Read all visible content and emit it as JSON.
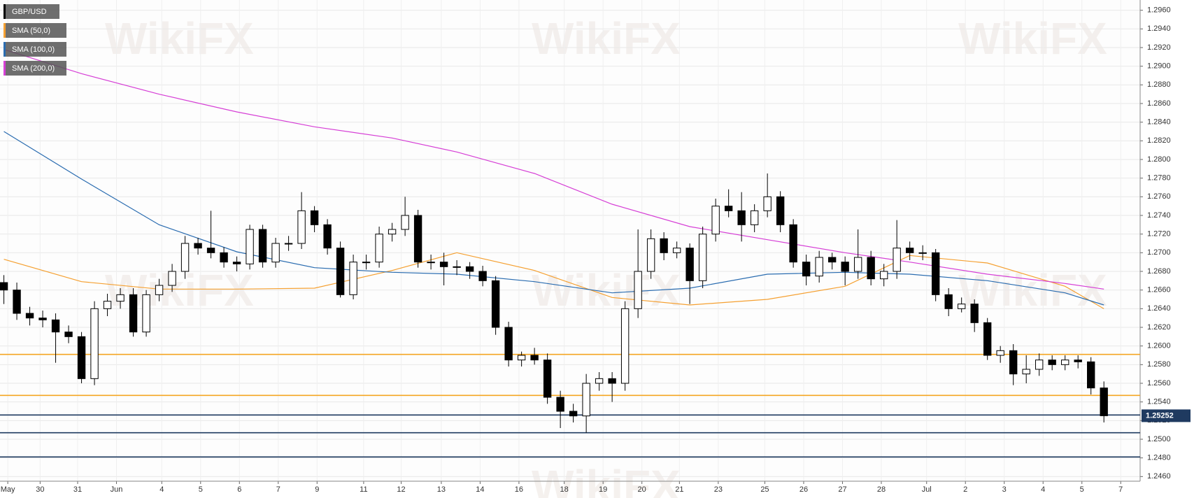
{
  "chart_data": {
    "type": "candlestick",
    "name": "GBP/USD",
    "watermark": "WikiFX",
    "color_up": "#ffffff",
    "color_down": "#000000",
    "open": [
      1.2668,
      1.266,
      1.2635,
      1.263,
      1.2628,
      1.2615,
      1.261,
      1.2565,
      1.264,
      1.2648,
      1.2655,
      1.2615,
      1.2655,
      1.2665,
      1.268,
      1.271,
      1.2705,
      1.27,
      1.269,
      1.2688,
      1.2725,
      1.269,
      1.271,
      1.271,
      1.2745,
      1.273,
      1.2705,
      1.2655,
      1.269,
      1.269,
      1.272,
      1.2725,
      1.274,
      1.269,
      1.269,
      1.2685,
      1.2685,
      1.268,
      1.267,
      1.262,
      1.2585,
      1.259,
      1.2585,
      1.2545,
      1.253,
      1.2525,
      1.256,
      1.2565,
      1.256,
      1.264,
      1.268,
      1.2715,
      1.27,
      1.2705,
      1.267,
      1.272,
      1.275,
      1.2745,
      1.273,
      1.2745,
      1.276,
      1.273,
      1.269,
      1.2675,
      1.2695,
      1.269,
      1.268,
      1.2695,
      1.2672,
      1.268,
      1.2705,
      1.27,
      1.27,
      1.2655,
      1.264,
      1.2645,
      1.2625,
      1.259,
      1.2595,
      1.257,
      1.2575,
      1.2585,
      1.258,
      1.2585,
      1.2583,
      1.2555
    ],
    "high": [
      1.2676,
      1.2668,
      1.2642,
      1.2638,
      1.2635,
      1.2622,
      1.2615,
      1.2648,
      1.2656,
      1.2662,
      1.2662,
      1.266,
      1.2672,
      1.2688,
      1.2718,
      1.2716,
      1.2745,
      1.2706,
      1.2696,
      1.273,
      1.273,
      1.2716,
      1.2718,
      1.2765,
      1.275,
      1.2736,
      1.2712,
      1.2698,
      1.2698,
      1.2728,
      1.2732,
      1.276,
      1.2746,
      1.2698,
      1.27,
      1.2692,
      1.269,
      1.2686,
      1.2675,
      1.2626,
      1.2594,
      1.2598,
      1.2592,
      1.2552,
      1.2538,
      1.257,
      1.2572,
      1.2572,
      1.2648,
      1.2725,
      1.2725,
      1.2722,
      1.2712,
      1.271,
      1.2728,
      1.2758,
      1.2768,
      1.2765,
      1.2752,
      1.2785,
      1.2766,
      1.2736,
      1.2698,
      1.2702,
      1.27,
      1.2696,
      1.2725,
      1.2702,
      1.2688,
      1.2735,
      1.2712,
      1.2708,
      1.2704,
      1.2662,
      1.2652,
      1.265,
      1.263,
      1.26,
      1.2602,
      1.259,
      1.2592,
      1.259,
      1.259,
      1.259,
      1.2588,
      1.2562
    ],
    "low": [
      1.2645,
      1.2628,
      1.2622,
      1.262,
      1.2582,
      1.2603,
      1.256,
      1.2558,
      1.2632,
      1.264,
      1.261,
      1.261,
      1.2648,
      1.2658,
      1.2672,
      1.2698,
      1.2694,
      1.2684,
      1.268,
      1.2682,
      1.2684,
      1.2684,
      1.2702,
      1.2704,
      1.2722,
      1.2698,
      1.2652,
      1.265,
      1.2682,
      1.2684,
      1.2712,
      1.2718,
      1.2684,
      1.2682,
      1.2665,
      1.2676,
      1.2672,
      1.2664,
      1.2612,
      1.2578,
      1.2578,
      1.258,
      1.2538,
      1.2512,
      1.2518,
      1.2507,
      1.2552,
      1.254,
      1.2552,
      1.263,
      1.2672,
      1.2692,
      1.2694,
      1.2645,
      1.2662,
      1.2712,
      1.2738,
      1.2712,
      1.2722,
      1.2738,
      1.2722,
      1.2684,
      1.2665,
      1.2668,
      1.2682,
      1.2665,
      1.2672,
      1.2665,
      1.2664,
      1.2672,
      1.2692,
      1.2692,
      1.2648,
      1.2632,
      1.2636,
      1.2615,
      1.2585,
      1.2582,
      1.2558,
      1.256,
      1.2568,
      1.2574,
      1.2574,
      1.2576,
      1.2548,
      1.2518
    ],
    "close": [
      1.266,
      1.2635,
      1.263,
      1.2628,
      1.2615,
      1.261,
      1.2565,
      1.264,
      1.2648,
      1.2655,
      1.2615,
      1.2655,
      1.2665,
      1.268,
      1.271,
      1.2705,
      1.27,
      1.269,
      1.2688,
      1.2725,
      1.269,
      1.271,
      1.271,
      1.2745,
      1.273,
      1.2705,
      1.2655,
      1.269,
      1.269,
      1.272,
      1.2725,
      1.274,
      1.269,
      1.269,
      1.2685,
      1.2685,
      1.268,
      1.267,
      1.262,
      1.2585,
      1.259,
      1.2585,
      1.2545,
      1.253,
      1.2525,
      1.256,
      1.2565,
      1.256,
      1.264,
      1.268,
      1.2715,
      1.27,
      1.2705,
      1.267,
      1.272,
      1.275,
      1.2745,
      1.273,
      1.2745,
      1.276,
      1.273,
      1.269,
      1.2675,
      1.2695,
      1.269,
      1.268,
      1.2695,
      1.2672,
      1.268,
      1.2705,
      1.27,
      1.27,
      1.2655,
      1.264,
      1.2645,
      1.2625,
      1.259,
      1.2595,
      1.257,
      1.2575,
      1.2585,
      1.258,
      1.2585,
      1.2583,
      1.2555,
      1.25252
    ],
    "overlays": [
      {
        "name": "SMA (50,0)",
        "color": "#f5a031",
        "x": [
          0,
          6,
          12,
          18,
          24,
          30,
          35,
          41,
          47,
          53,
          59,
          65,
          70,
          76,
          82,
          85
        ],
        "values": [
          1.2693,
          1.2669,
          1.2661,
          1.2661,
          1.2662,
          1.2681,
          1.27,
          1.2681,
          1.2652,
          1.2644,
          1.265,
          1.2664,
          1.2697,
          1.2689,
          1.2664,
          1.264
        ]
      },
      {
        "name": "SMA (100,0)",
        "color": "#2a6cb0",
        "x": [
          0,
          6,
          12,
          18,
          24,
          30,
          35,
          41,
          47,
          53,
          59,
          65,
          70,
          76,
          82,
          85
        ],
        "values": [
          1.283,
          1.2779,
          1.273,
          1.2701,
          1.2684,
          1.2679,
          1.2677,
          1.2669,
          1.2657,
          1.2662,
          1.2677,
          1.2679,
          1.2677,
          1.267,
          1.2657,
          1.2644
        ]
      },
      {
        "name": "SMA (200,0)",
        "color": "#d63fd6",
        "x": [
          0,
          6,
          12,
          18,
          24,
          30,
          35,
          41,
          47,
          53,
          59,
          65,
          70,
          76,
          82,
          85
        ],
        "values": [
          1.2918,
          1.2892,
          1.287,
          1.2851,
          1.2835,
          1.2823,
          1.2808,
          1.2785,
          1.2752,
          1.2728,
          1.2714,
          1.27,
          1.269,
          1.2677,
          1.2667,
          1.2661
        ]
      }
    ],
    "levels": [
      {
        "value": 1.2591,
        "color": "#f5a623"
      },
      {
        "value": 1.2547,
        "color": "#f5a623"
      },
      {
        "value": 1.2526,
        "color": "#1f3a60"
      },
      {
        "value": 1.2507,
        "color": "#1f3a60"
      },
      {
        "value": 1.2481,
        "color": "#1f3a60"
      }
    ],
    "xlim": [
      -0.3,
      87.8
    ],
    "ylim": [
      1.2455,
      1.2971
    ],
    "grid": true,
    "xticks": [
      {
        "value": 0.3,
        "label": "May"
      },
      {
        "value": 2.8,
        "label": "30"
      },
      {
        "value": 5.7,
        "label": "31"
      },
      {
        "value": 8.7,
        "label": "Jun"
      },
      {
        "value": 12.2,
        "label": "4"
      },
      {
        "value": 15.2,
        "label": "5"
      },
      {
        "value": 18.2,
        "label": "6"
      },
      {
        "value": 21.2,
        "label": "7"
      },
      {
        "value": 24.2,
        "label": "9"
      },
      {
        "value": 27.8,
        "label": "11"
      },
      {
        "value": 30.7,
        "label": "12"
      },
      {
        "value": 33.8,
        "label": "13"
      },
      {
        "value": 36.8,
        "label": "14"
      },
      {
        "value": 39.8,
        "label": "16"
      },
      {
        "value": 43.3,
        "label": "18"
      },
      {
        "value": 46.3,
        "label": "19"
      },
      {
        "value": 49.3,
        "label": "20"
      },
      {
        "value": 52.2,
        "label": "21"
      },
      {
        "value": 55.2,
        "label": "23"
      },
      {
        "value": 58.8,
        "label": "25"
      },
      {
        "value": 61.8,
        "label": "26"
      },
      {
        "value": 64.8,
        "label": "27"
      },
      {
        "value": 67.8,
        "label": "28"
      },
      {
        "value": 71.3,
        "label": "Jul"
      },
      {
        "value": 74.3,
        "label": "2"
      },
      {
        "value": 77.3,
        "label": "3"
      },
      {
        "value": 80.3,
        "label": "4"
      },
      {
        "value": 83.3,
        "label": "5"
      },
      {
        "value": 86.3,
        "label": "7"
      }
    ],
    "yticks": [
      {
        "value": 1.246,
        "label": "1.2460"
      },
      {
        "value": 1.248,
        "label": "1.2480"
      },
      {
        "value": 1.25,
        "label": "1.2500"
      },
      {
        "value": 1.252,
        "label": "1.2520"
      },
      {
        "value": 1.254,
        "label": "1.2540"
      },
      {
        "value": 1.256,
        "label": "1.2560"
      },
      {
        "value": 1.258,
        "label": "1.2580"
      },
      {
        "value": 1.26,
        "label": "1.2600"
      },
      {
        "value": 1.262,
        "label": "1.2620"
      },
      {
        "value": 1.264,
        "label": "1.2640"
      },
      {
        "value": 1.266,
        "label": "1.2660"
      },
      {
        "value": 1.268,
        "label": "1.2680"
      },
      {
        "value": 1.27,
        "label": "1.2700"
      },
      {
        "value": 1.272,
        "label": "1.2720"
      },
      {
        "value": 1.274,
        "label": "1.2740"
      },
      {
        "value": 1.276,
        "label": "1.2760"
      },
      {
        "value": 1.278,
        "label": "1.2780"
      },
      {
        "value": 1.28,
        "label": "1.2800"
      },
      {
        "value": 1.282,
        "label": "1.2820"
      },
      {
        "value": 1.284,
        "label": "1.2840"
      },
      {
        "value": 1.286,
        "label": "1.2860"
      },
      {
        "value": 1.288,
        "label": "1.2880"
      },
      {
        "value": 1.29,
        "label": "1.2900"
      },
      {
        "value": 1.292,
        "label": "1.2920"
      },
      {
        "value": 1.294,
        "label": "1.2940"
      },
      {
        "value": 1.296,
        "label": "1.2960"
      }
    ]
  }
}
